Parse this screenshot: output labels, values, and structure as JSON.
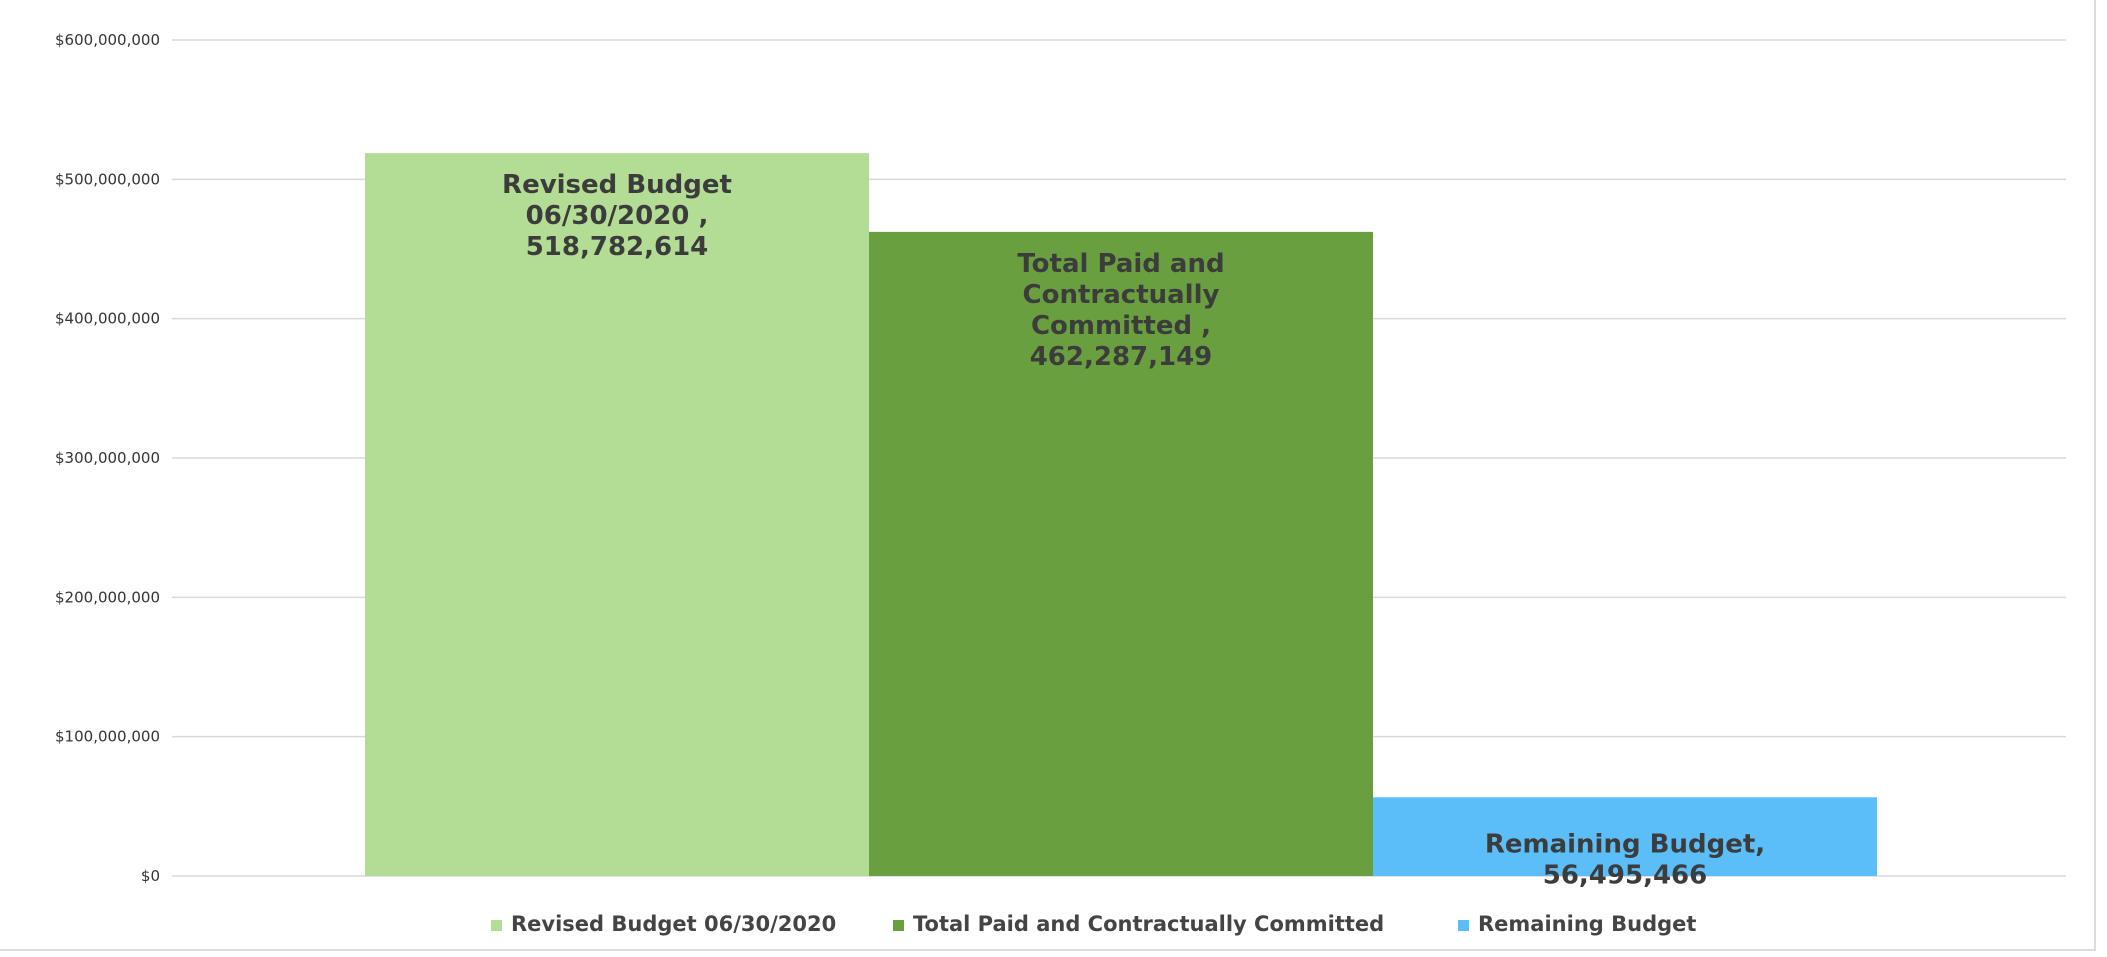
{
  "chart_data": {
    "type": "bar",
    "title": "",
    "xlabel": "",
    "ylabel": "",
    "ylim": [
      0,
      600000000
    ],
    "yticks": [
      0,
      100000000,
      200000000,
      300000000,
      400000000,
      500000000,
      600000000
    ],
    "ytick_labels": [
      "$0",
      "$100,000,000",
      "$200,000,000",
      "$300,000,000",
      "$400,000,000",
      "$500,000,000",
      "$600,000,000"
    ],
    "grid": true,
    "legend_position": "bottom",
    "series": [
      {
        "name": "Revised Budget 06/30/2020",
        "values": [
          518782614
        ],
        "color": "#b3dc95",
        "label_lines": [
          "Revised Budget",
          "06/30/2020 ,",
          "518,782,614"
        ]
      },
      {
        "name": "Total Paid and Contractually Committed",
        "values": [
          462287149
        ],
        "color": "#699f3f",
        "label_lines": [
          "Total Paid and",
          "Contractually",
          "Committed ,",
          "462,287,149"
        ]
      },
      {
        "name": "Remaining Budget",
        "values": [
          56495466
        ],
        "color": "#5bbef8",
        "label_lines": [
          "Remaining Budget,",
          "56,495,466"
        ]
      }
    ]
  }
}
